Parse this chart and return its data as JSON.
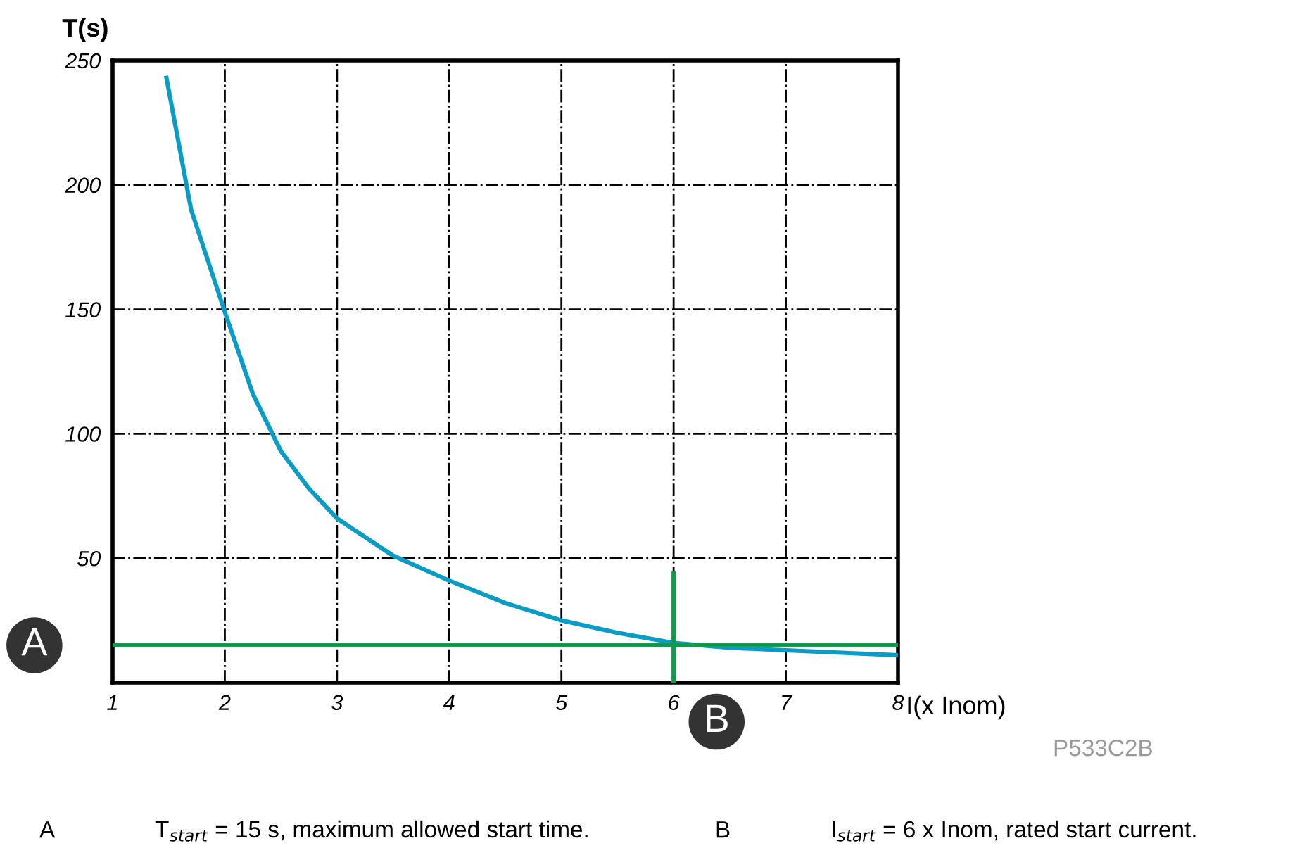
{
  "chart_data": {
    "type": "line",
    "xlabel": "I(x Inom)",
    "ylabel": "T(s)",
    "x": [
      1.48,
      1.7,
      2,
      2.25,
      2.5,
      2.75,
      3,
      3.5,
      4,
      4.5,
      5,
      5.5,
      6,
      6.5,
      7,
      7.5,
      8
    ],
    "series": [
      {
        "color": "#0a9cc4",
        "values": [
          243,
          190,
          149,
          116,
          93,
          78,
          66,
          51,
          41,
          32,
          25,
          20,
          16,
          14,
          13,
          12,
          11
        ]
      },
      {
        "type": "line",
        "color": "#119a4c",
        "x": [
          6,
          6
        ],
        "values": [
          0,
          44
        ]
      }
    ],
    "xlim": [
      1,
      8
    ],
    "ylim": [
      0,
      250
    ],
    "xticks": [
      1,
      2,
      3,
      4,
      5,
      6,
      7,
      8
    ],
    "yticks": [
      {
        "value": 0,
        "label": null
      },
      50,
      100,
      150,
      200,
      250
    ],
    "grid": true,
    "line_style": "solid",
    "marker": "none",
    "ref_lines": [
      {
        "axis": "y",
        "value": 15,
        "label": "A",
        "color": "#119a4c"
      }
    ],
    "annotations": [
      {
        "text": "B",
        "x": 6,
        "y": 0
      },
      "P533C2B",
      "A",
      "T$_{start}$ = 15 s, maximum allowed start time.",
      "B",
      "I$_{start}$ = 6 x Inom, rated start current."
    ]
  }
}
